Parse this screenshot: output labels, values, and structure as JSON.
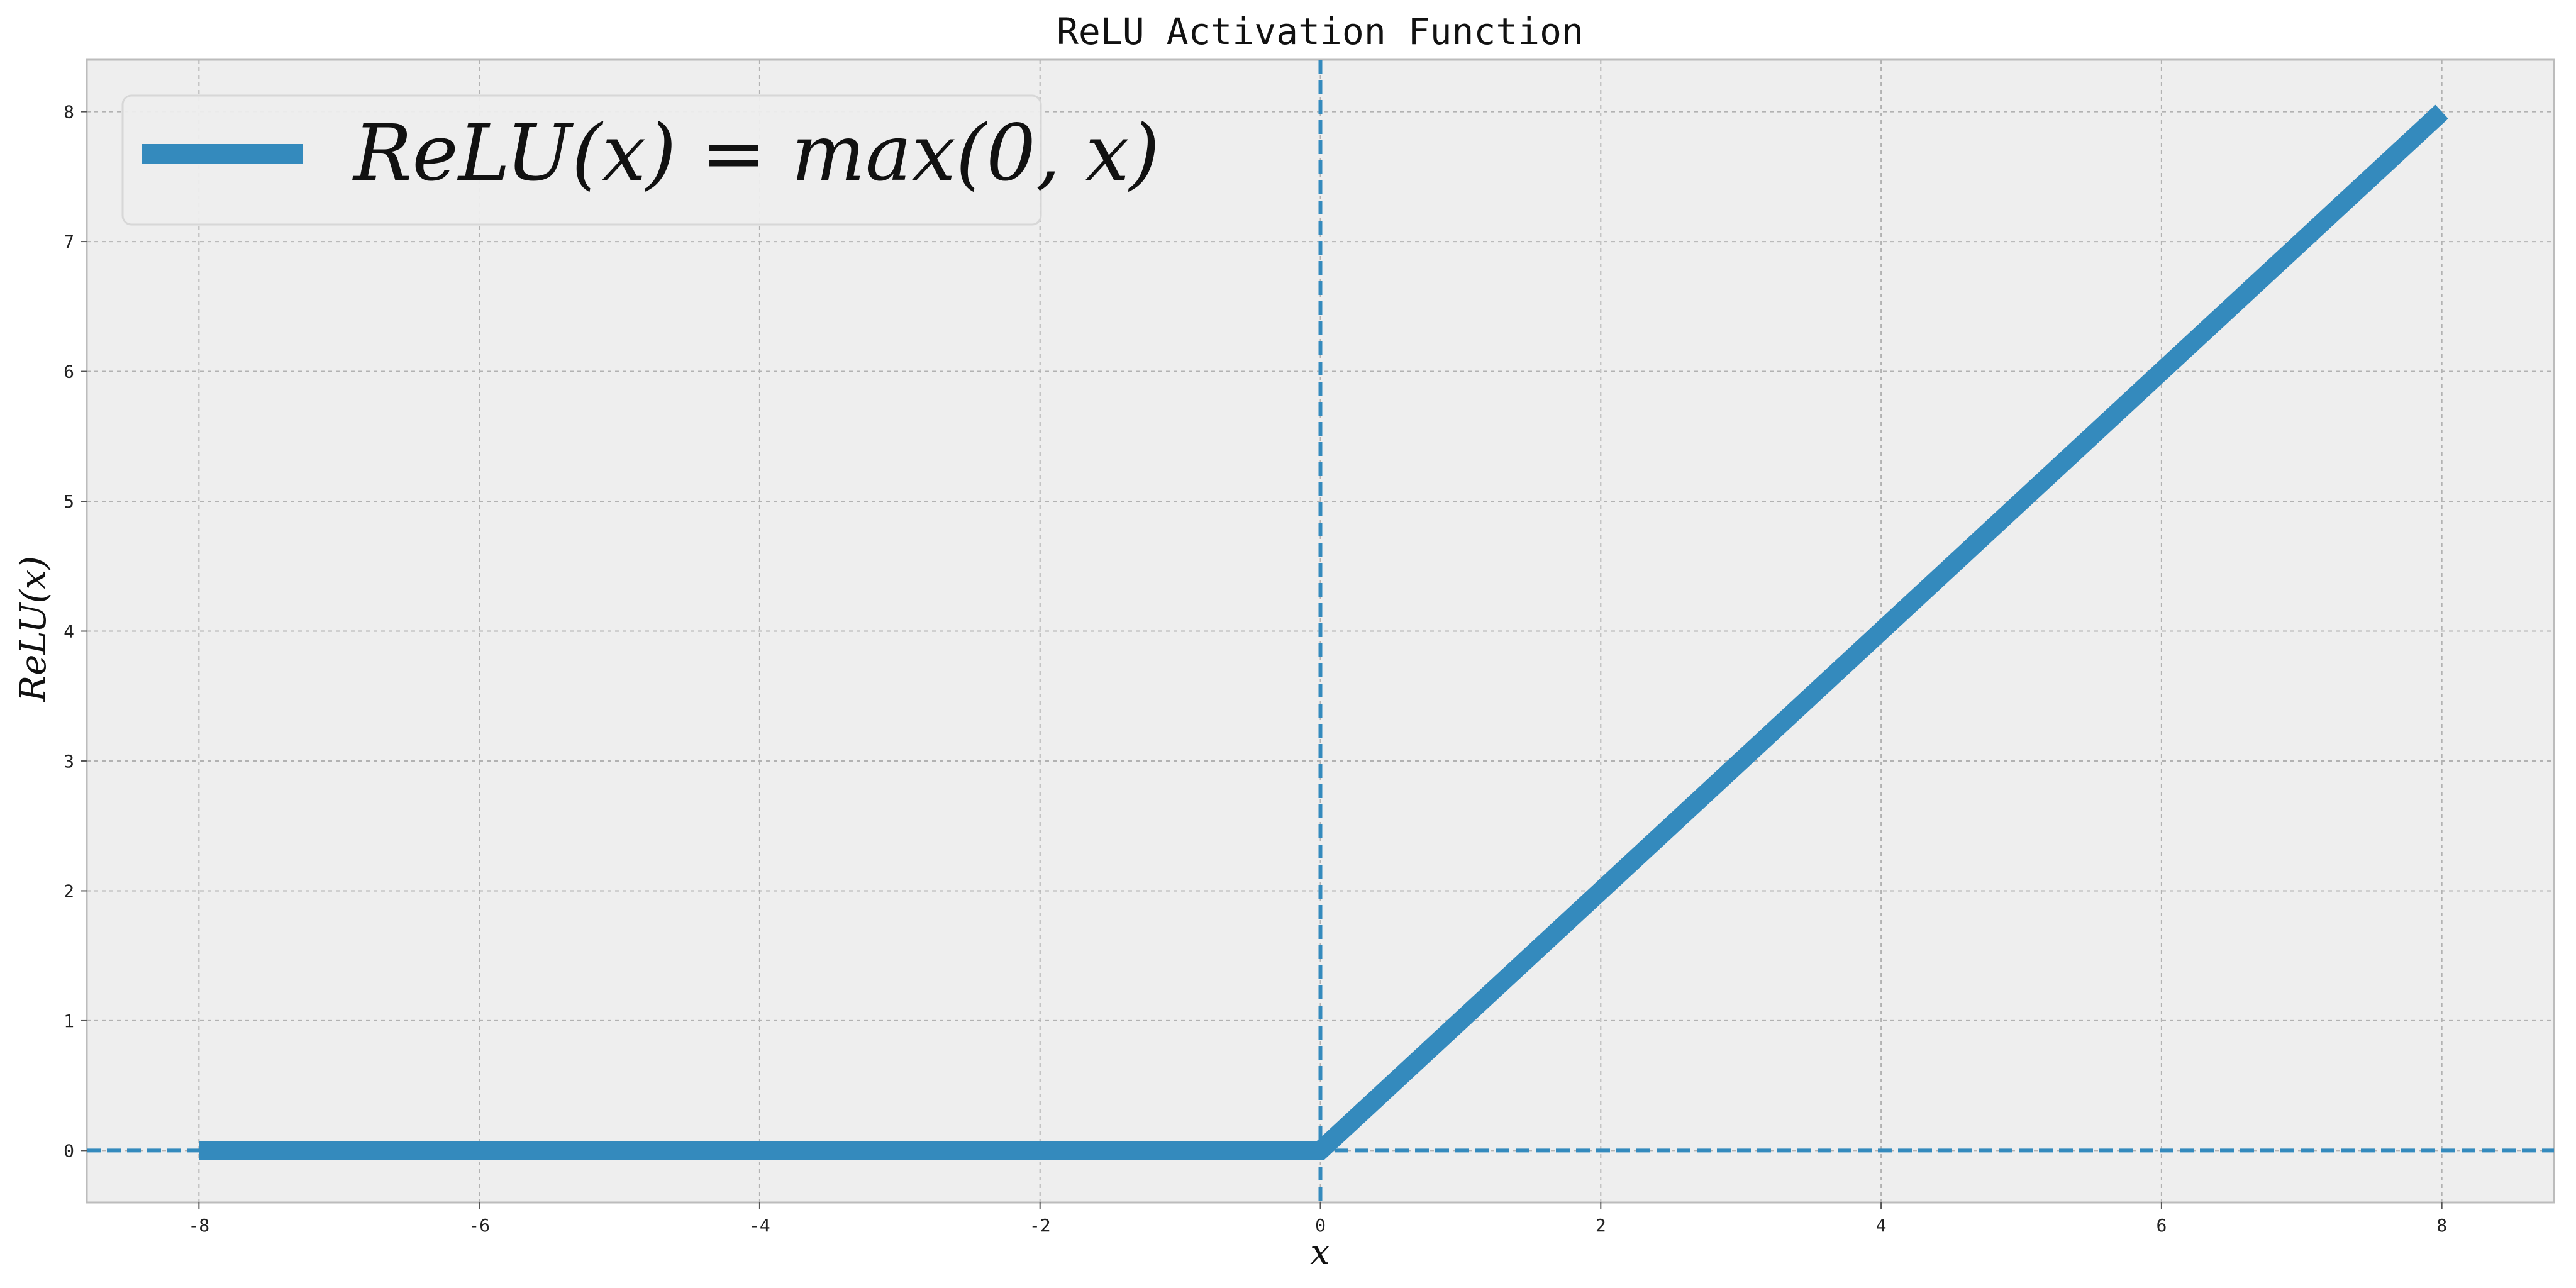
{
  "chart_data": {
    "type": "line",
    "title": "ReLU Activation Function",
    "xlabel": "x",
    "ylabel": "ReLU(x)",
    "xlim": [
      -8.8,
      8.8
    ],
    "ylim": [
      -0.4,
      8.4
    ],
    "xticks": [
      -8,
      -6,
      -4,
      -2,
      0,
      2,
      4,
      6,
      8
    ],
    "yticks": [
      0,
      1,
      2,
      3,
      4,
      5,
      6,
      7,
      8
    ],
    "grid": true,
    "legend_position": "top-left",
    "series": [
      {
        "name": "ReLU(x) = max(0, x)",
        "color": "#348abd",
        "x": [
          -8,
          -6,
          -4,
          -2,
          0,
          2,
          4,
          6,
          8
        ],
        "y": [
          0,
          0,
          0,
          0,
          0,
          2,
          4,
          6,
          8
        ]
      }
    ],
    "reference_lines": [
      {
        "orientation": "vertical",
        "value": 0,
        "style": "dashed",
        "color": "#348abd"
      },
      {
        "orientation": "horizontal",
        "value": 0,
        "style": "dashed",
        "color": "#348abd"
      }
    ],
    "colors": {
      "plot_background": "#eeeeee",
      "grid": "#b2b2b2",
      "axes_edge": "#bcbcbc"
    }
  }
}
